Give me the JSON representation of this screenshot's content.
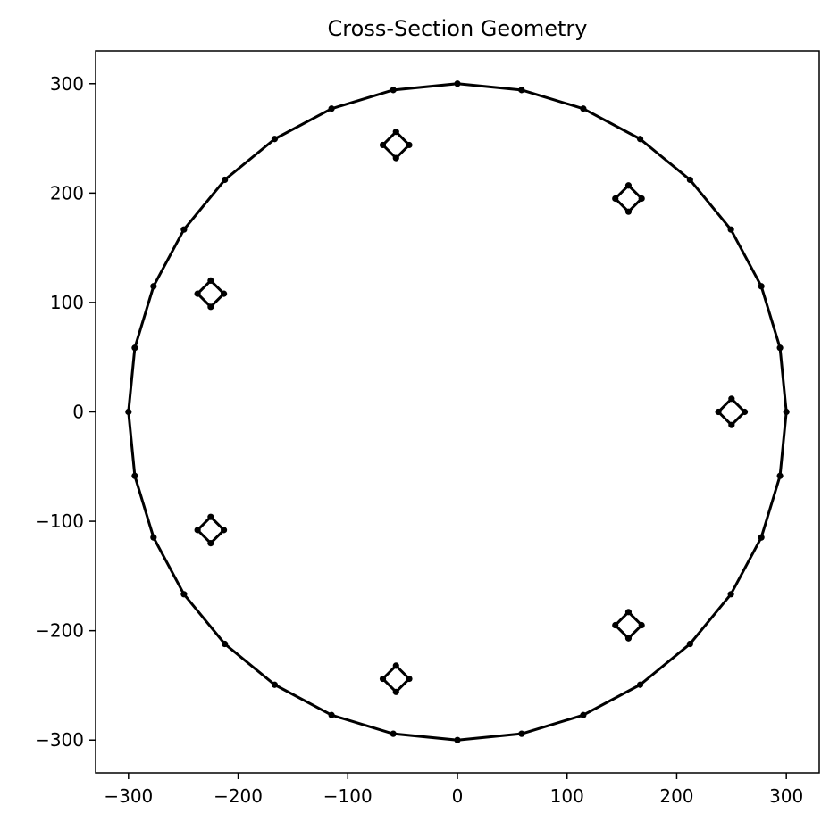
{
  "chart_data": {
    "type": "line",
    "title": "Cross-Section Geometry",
    "xlabel": "",
    "ylabel": "",
    "xlim": [
      -330,
      330
    ],
    "ylim": [
      -330,
      330
    ],
    "xticks": [
      -300,
      -200,
      -100,
      0,
      100,
      200,
      300
    ],
    "yticks": [
      -300,
      -200,
      -100,
      0,
      100,
      200,
      300
    ],
    "xtick_labels": [
      "−300",
      "−200",
      "−100",
      "0",
      "100",
      "200",
      "300"
    ],
    "ytick_labels": [
      "−300",
      "−200",
      "−100",
      "0",
      "100",
      "200",
      "300"
    ],
    "grid": false,
    "legend": "none",
    "line_color": "#000000",
    "outer_boundary": {
      "shape": "32-gon",
      "radius": 300,
      "vertex_count": 32
    },
    "bars": [
      {
        "center": [
          250,
          0
        ],
        "half_diagonal": 12
      },
      {
        "center": [
          156,
          195
        ],
        "half_diagonal": 12
      },
      {
        "center": [
          -56,
          244
        ],
        "half_diagonal": 12
      },
      {
        "center": [
          -225,
          108
        ],
        "half_diagonal": 12
      },
      {
        "center": [
          -225,
          -108
        ],
        "half_diagonal": 12
      },
      {
        "center": [
          -56,
          -244
        ],
        "half_diagonal": 12
      },
      {
        "center": [
          156,
          -195
        ],
        "half_diagonal": 12
      }
    ]
  }
}
